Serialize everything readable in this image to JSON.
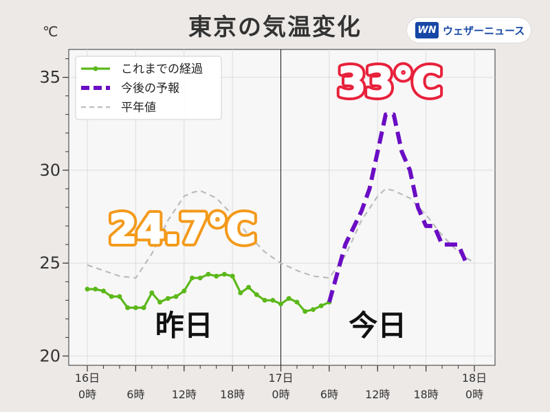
{
  "title": "東京の気温変化",
  "unit": "℃",
  "logo": {
    "mark": "WN",
    "text": "ウェザーニュース"
  },
  "colors": {
    "observed": "#5bb81a",
    "forecast": "#6a0dc4",
    "normal": "#bbbbbb",
    "max_today": "#e8223c",
    "max_yesterday": "#f39a1b"
  },
  "chart_data": {
    "type": "line",
    "xlabel": "",
    "ylabel": "℃",
    "xlim": [
      0,
      48
    ],
    "ylim": [
      19.5,
      36.5
    ],
    "y_ticks": [
      20,
      25,
      30,
      35
    ],
    "x_ticks": [
      {
        "x": 0,
        "line1": "16日",
        "line2": "0時"
      },
      {
        "x": 6,
        "line1": "",
        "line2": "6時"
      },
      {
        "x": 12,
        "line1": "",
        "line2": "12時"
      },
      {
        "x": 18,
        "line1": "",
        "line2": "18時"
      },
      {
        "x": 24,
        "line1": "17日",
        "line2": "0時"
      },
      {
        "x": 30,
        "line1": "",
        "line2": "6時"
      },
      {
        "x": 36,
        "line1": "",
        "line2": "12時"
      },
      {
        "x": 42,
        "line1": "",
        "line2": "18時"
      },
      {
        "x": 48,
        "line1": "18日",
        "line2": "0時"
      }
    ],
    "grid": true,
    "legend_position": "top-left",
    "divider_x": 24,
    "section_labels": [
      {
        "x": 12,
        "y": 21.1,
        "text": "昨日"
      },
      {
        "x": 36,
        "y": 21.1,
        "text": "今日"
      }
    ],
    "annotations": [
      {
        "text": "24.7℃",
        "x": 11.8,
        "y": 26.1,
        "color_key": "max_yesterday"
      },
      {
        "text": "33℃",
        "x": 37.5,
        "y": 34.0,
        "color_key": "max_today"
      }
    ],
    "series": [
      {
        "name": "これまでの経過",
        "style": "observed",
        "points": [
          [
            0,
            23.6
          ],
          [
            1,
            23.6
          ],
          [
            2,
            23.5
          ],
          [
            3,
            23.2
          ],
          [
            4,
            23.2
          ],
          [
            5,
            22.6
          ],
          [
            6,
            22.6
          ],
          [
            7,
            22.6
          ],
          [
            8,
            23.4
          ],
          [
            9,
            22.9
          ],
          [
            10,
            23.1
          ],
          [
            11,
            23.2
          ],
          [
            12,
            23.5
          ],
          [
            13,
            24.2
          ],
          [
            14,
            24.2
          ],
          [
            15,
            24.4
          ],
          [
            16,
            24.3
          ],
          [
            17,
            24.4
          ],
          [
            18,
            24.3
          ],
          [
            19,
            23.4
          ],
          [
            20,
            23.7
          ],
          [
            21,
            23.3
          ],
          [
            22,
            23.0
          ],
          [
            23,
            23.0
          ],
          [
            24,
            22.8
          ],
          [
            25,
            23.1
          ],
          [
            26,
            22.9
          ],
          [
            27,
            22.4
          ],
          [
            28,
            22.5
          ],
          [
            29,
            22.7
          ],
          [
            30,
            22.9
          ]
        ]
      },
      {
        "name": "今後の予報",
        "style": "forecast",
        "points": [
          [
            30,
            22.9
          ],
          [
            32,
            26
          ],
          [
            34,
            27.8
          ],
          [
            35,
            29
          ],
          [
            36,
            31
          ],
          [
            37,
            33
          ],
          [
            38,
            33
          ],
          [
            39,
            31
          ],
          [
            40,
            30
          ],
          [
            41,
            28
          ],
          [
            42,
            27
          ],
          [
            43,
            27
          ],
          [
            44,
            26
          ],
          [
            45,
            26
          ],
          [
            46,
            26
          ],
          [
            47,
            25
          ]
        ]
      },
      {
        "name": "平年値",
        "style": "normal",
        "points": [
          [
            0,
            24.9
          ],
          [
            2,
            24.6
          ],
          [
            4,
            24.3
          ],
          [
            6,
            24.2
          ],
          [
            8,
            25.5
          ],
          [
            10,
            27.3
          ],
          [
            12,
            28.6
          ],
          [
            13,
            28.8
          ],
          [
            14,
            28.9
          ],
          [
            16,
            28.5
          ],
          [
            18,
            27.6
          ],
          [
            20,
            26.5
          ],
          [
            22,
            25.6
          ],
          [
            24,
            25.0
          ],
          [
            26,
            24.6
          ],
          [
            28,
            24.3
          ],
          [
            30,
            24.2
          ],
          [
            32,
            25.4
          ],
          [
            34,
            27.3
          ],
          [
            36,
            28.6
          ],
          [
            37,
            29.0
          ],
          [
            38,
            28.9
          ],
          [
            40,
            28.5
          ],
          [
            42,
            27.6
          ],
          [
            44,
            26.5
          ],
          [
            46,
            25.6
          ],
          [
            48,
            25.0
          ]
        ]
      }
    ]
  }
}
